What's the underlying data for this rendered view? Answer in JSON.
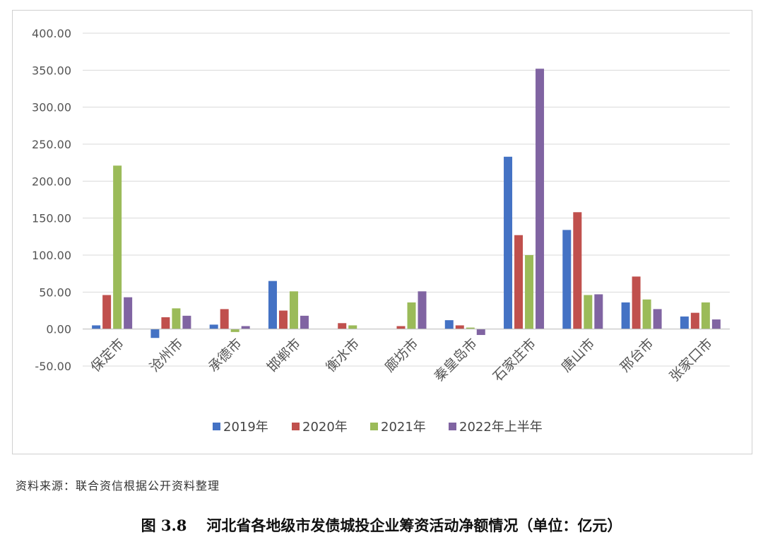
{
  "chart_data": {
    "type": "bar",
    "categories": [
      "保定市",
      "沧州市",
      "承德市",
      "邯郸市",
      "衡水市",
      "廊坊市",
      "秦皇岛市",
      "石家庄市",
      "唐山市",
      "邢台市",
      "张家口市"
    ],
    "series": [
      {
        "name": "2019年",
        "color": "#4472c4",
        "values": [
          5,
          -12,
          6,
          65,
          0,
          0,
          12,
          233,
          134,
          36,
          17
        ]
      },
      {
        "name": "2020年",
        "color": "#c0504d",
        "values": [
          46,
          16,
          27,
          25,
          8,
          4,
          5,
          127,
          158,
          71,
          22
        ]
      },
      {
        "name": "2021年",
        "color": "#9bbb59",
        "values": [
          221,
          28,
          -4,
          51,
          5,
          36,
          2,
          100,
          46,
          40,
          36
        ]
      },
      {
        "name": "2022年上半年",
        "color": "#8064a2",
        "values": [
          43,
          18,
          4,
          18,
          0,
          51,
          -8,
          352,
          47,
          27,
          13
        ]
      }
    ],
    "yticks": [
      "400.00",
      "350.00",
      "300.00",
      "250.00",
      "200.00",
      "150.00",
      "100.00",
      "50.00",
      "0.00",
      "-50.00"
    ],
    "ylim": [
      -50,
      400
    ],
    "grid": true,
    "legend_position": "bottom"
  },
  "source_note": "资料来源：联合资信根据公开资料整理",
  "caption": {
    "number": "图 3.8",
    "text": "河北省各地级市发债城投企业筹资活动净额情况（单位：亿元）"
  }
}
